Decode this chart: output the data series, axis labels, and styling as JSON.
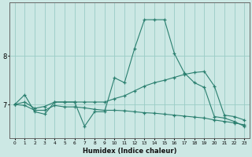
{
  "x": [
    0,
    1,
    2,
    3,
    4,
    5,
    6,
    7,
    8,
    9,
    10,
    11,
    12,
    13,
    14,
    15,
    16,
    17,
    18,
    19,
    20,
    21,
    22,
    23
  ],
  "line1": [
    7.0,
    7.2,
    6.85,
    6.8,
    7.05,
    7.05,
    7.05,
    6.55,
    6.85,
    6.85,
    7.55,
    7.45,
    8.15,
    8.75,
    8.75,
    8.75,
    8.05,
    7.65,
    7.45,
    7.35,
    6.75,
    6.72,
    6.65,
    6.55
  ],
  "line2": [
    7.0,
    7.05,
    6.92,
    6.96,
    7.05,
    7.05,
    7.05,
    7.05,
    7.05,
    7.05,
    7.12,
    7.18,
    7.28,
    7.38,
    7.45,
    7.5,
    7.56,
    7.62,
    7.66,
    7.68,
    7.38,
    6.78,
    6.75,
    6.68
  ],
  "line3": [
    7.0,
    6.98,
    6.88,
    6.88,
    6.98,
    6.95,
    6.95,
    6.93,
    6.9,
    6.88,
    6.88,
    6.87,
    6.85,
    6.83,
    6.82,
    6.8,
    6.78,
    6.76,
    6.74,
    6.72,
    6.68,
    6.65,
    6.62,
    6.58
  ],
  "line_color": "#2a7f6f",
  "bg_color": "#cce8e4",
  "grid_color": "#99ccc6",
  "xlabel": "Humidex (Indice chaleur)",
  "ylim": [
    6.3,
    9.1
  ],
  "yticks": [
    7,
    8
  ],
  "xlim": [
    -0.5,
    23.5
  ],
  "xtick_labels": [
    "0",
    "1",
    "2",
    "3",
    "4",
    "5",
    "6",
    "7",
    "8",
    "9",
    "10",
    "11",
    "12",
    "13",
    "14",
    "15",
    "16",
    "17",
    "18",
    "19",
    "20",
    "21",
    "22",
    "23"
  ]
}
